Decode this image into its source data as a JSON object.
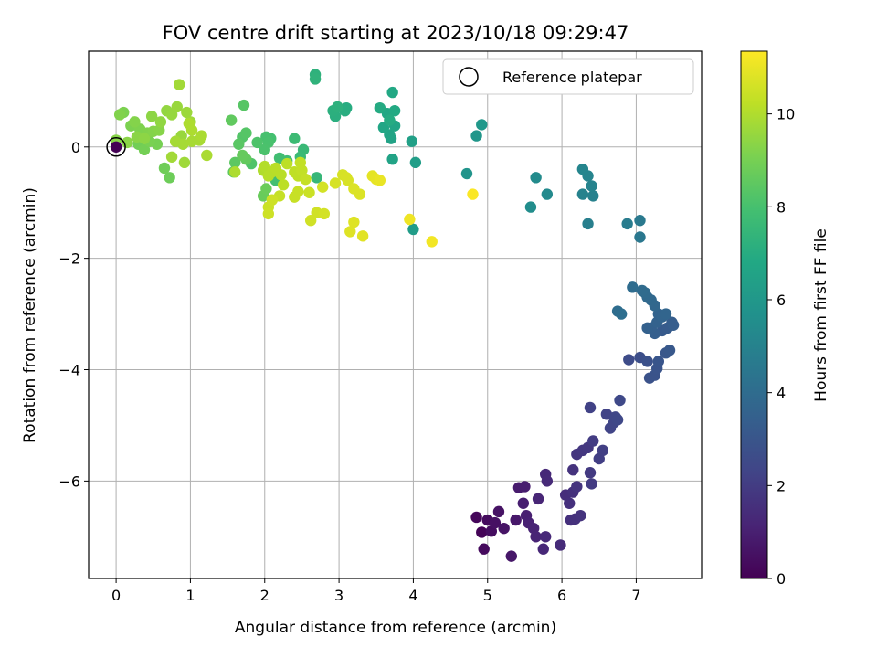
{
  "chart_data": {
    "type": "scatter",
    "title": "FOV centre drift starting at 2023/10/18 09:29:47",
    "xlabel": "Angular distance from reference (arcmin)",
    "ylabel": "Rotation from reference (arcmin)",
    "xlim": [
      -0.37,
      7.88
    ],
    "ylim": [
      -7.75,
      1.72
    ],
    "xticks": [
      0,
      1,
      2,
      3,
      4,
      5,
      6,
      7
    ],
    "yticks": [
      0,
      -2,
      -4,
      -6
    ],
    "grid": true,
    "legend": {
      "position": "top-right",
      "label": "Reference platepar"
    },
    "colorbar": {
      "label": "Hours from first FF file",
      "range": [
        0,
        11.35
      ],
      "ticks": [
        0,
        2,
        4,
        6,
        8,
        10
      ],
      "colormap": "viridis"
    },
    "reference_point": {
      "x": 0,
      "y": 0,
      "color_value": 0
    },
    "series": [
      {
        "points": [
          [
            4.85,
            -6.65,
            0.2
          ],
          [
            4.92,
            -6.92,
            0.1
          ],
          [
            4.95,
            -7.22,
            0.3
          ],
          [
            5.0,
            -6.7,
            0.35
          ],
          [
            5.05,
            -6.9,
            0.4
          ],
          [
            5.1,
            -6.75,
            0.5
          ],
          [
            5.15,
            -6.55,
            0.55
          ],
          [
            5.22,
            -6.85,
            0.6
          ],
          [
            5.32,
            -7.35,
            0.7
          ],
          [
            5.38,
            -6.7,
            0.75
          ],
          [
            5.42,
            -6.12,
            0.85
          ],
          [
            5.5,
            -6.1,
            0.9
          ],
          [
            5.48,
            -6.4,
            0.95
          ],
          [
            5.52,
            -6.62,
            1.0
          ],
          [
            5.55,
            -6.75,
            1.05
          ],
          [
            5.62,
            -6.85,
            1.1
          ],
          [
            5.65,
            -7.0,
            1.15
          ],
          [
            5.68,
            -6.32,
            1.2
          ],
          [
            5.75,
            -7.22,
            1.25
          ],
          [
            5.78,
            -5.88,
            1.3
          ],
          [
            5.8,
            -6.0,
            1.35
          ],
          [
            5.78,
            -7.0,
            1.3
          ],
          [
            5.98,
            -7.15,
            1.4
          ],
          [
            6.05,
            -6.25,
            1.5
          ],
          [
            6.1,
            -6.4,
            1.55
          ],
          [
            6.15,
            -6.2,
            1.6
          ],
          [
            6.15,
            -5.8,
            1.65
          ],
          [
            6.2,
            -6.1,
            1.7
          ],
          [
            6.12,
            -6.7,
            1.55
          ],
          [
            6.18,
            -6.68,
            1.6
          ],
          [
            6.25,
            -6.62,
            1.65
          ],
          [
            6.2,
            -5.52,
            1.75
          ],
          [
            6.28,
            -5.45,
            1.8
          ],
          [
            6.35,
            -5.4,
            1.85
          ],
          [
            6.38,
            -5.85,
            1.9
          ],
          [
            6.4,
            -6.05,
            1.95
          ],
          [
            6.42,
            -5.28,
            2.0
          ],
          [
            6.5,
            -5.6,
            2.05
          ],
          [
            6.55,
            -5.45,
            2.1
          ],
          [
            6.38,
            -4.68,
            2.2
          ],
          [
            6.6,
            -4.8,
            2.25
          ],
          [
            6.65,
            -5.05,
            2.3
          ],
          [
            6.7,
            -4.95,
            2.35
          ],
          [
            6.72,
            -4.85,
            2.4
          ],
          [
            6.75,
            -4.9,
            2.45
          ],
          [
            6.78,
            -4.55,
            2.5
          ],
          [
            6.9,
            -3.82,
            2.6
          ],
          [
            7.05,
            -3.78,
            2.7
          ],
          [
            7.15,
            -3.85,
            2.8
          ],
          [
            7.18,
            -4.15,
            2.85
          ],
          [
            7.25,
            -4.1,
            2.9
          ],
          [
            7.28,
            -3.98,
            2.95
          ],
          [
            7.3,
            -3.85,
            3.0
          ],
          [
            7.4,
            -3.7,
            3.05
          ],
          [
            7.45,
            -3.65,
            3.1
          ],
          [
            7.35,
            -3.3,
            3.2
          ],
          [
            7.42,
            -3.25,
            3.25
          ],
          [
            7.48,
            -3.15,
            3.3
          ],
          [
            7.5,
            -3.2,
            3.35
          ],
          [
            7.25,
            -3.35,
            3.4
          ],
          [
            7.2,
            -3.25,
            3.45
          ],
          [
            7.15,
            -3.25,
            3.5
          ],
          [
            7.28,
            -3.15,
            3.55
          ],
          [
            7.3,
            -3.0,
            3.6
          ],
          [
            7.35,
            -3.05,
            3.65
          ],
          [
            7.4,
            -3.0,
            3.7
          ],
          [
            7.25,
            -2.85,
            3.75
          ],
          [
            7.2,
            -2.75,
            3.8
          ],
          [
            7.15,
            -2.7,
            3.85
          ],
          [
            7.12,
            -2.62,
            3.9
          ],
          [
            7.08,
            -2.58,
            3.95
          ],
          [
            6.95,
            -2.52,
            4.0
          ],
          [
            6.75,
            -2.95,
            4.05
          ],
          [
            6.8,
            -3.0,
            4.1
          ],
          [
            7.05,
            -1.62,
            4.5
          ],
          [
            7.05,
            -1.32,
            4.6
          ],
          [
            6.88,
            -1.38,
            4.7
          ],
          [
            6.35,
            -1.38,
            4.85
          ],
          [
            6.42,
            -0.88,
            4.95
          ],
          [
            6.28,
            -0.85,
            5.0
          ],
          [
            6.4,
            -0.7,
            5.05
          ],
          [
            6.35,
            -0.52,
            5.1
          ],
          [
            6.28,
            -0.4,
            5.15
          ],
          [
            5.8,
            -0.85,
            5.35
          ],
          [
            5.65,
            -0.55,
            5.4
          ],
          [
            5.58,
            -1.08,
            5.5
          ],
          [
            4.72,
            -0.48,
            5.8
          ],
          [
            4.85,
            0.2,
            5.9
          ],
          [
            4.92,
            0.4,
            6.0
          ],
          [
            4.0,
            -1.48,
            6.2
          ],
          [
            4.03,
            -0.28,
            6.3
          ],
          [
            3.98,
            0.1,
            6.4
          ],
          [
            3.7,
            0.15,
            6.5
          ],
          [
            3.72,
            -0.22,
            6.55
          ],
          [
            3.68,
            0.22,
            6.6
          ],
          [
            3.75,
            0.38,
            6.65
          ],
          [
            3.6,
            0.35,
            6.7
          ],
          [
            3.65,
            0.6,
            6.75
          ],
          [
            3.72,
            0.98,
            6.8
          ],
          [
            3.75,
            0.65,
            6.85
          ],
          [
            3.55,
            0.7,
            6.9
          ],
          [
            3.68,
            0.48,
            6.95
          ],
          [
            3.1,
            0.7,
            7.0
          ],
          [
            3.08,
            0.65,
            7.05
          ],
          [
            2.95,
            0.55,
            7.1
          ],
          [
            2.92,
            0.65,
            7.15
          ],
          [
            2.98,
            0.72,
            7.2
          ],
          [
            2.68,
            1.3,
            7.25
          ],
          [
            2.68,
            1.22,
            7.3
          ],
          [
            2.7,
            -0.55,
            7.5
          ],
          [
            2.52,
            -0.05,
            7.6
          ],
          [
            2.48,
            -0.18,
            7.65
          ],
          [
            2.4,
            0.15,
            7.7
          ],
          [
            2.3,
            -0.25,
            7.8
          ],
          [
            2.2,
            -0.2,
            7.85
          ],
          [
            2.15,
            -0.6,
            7.9
          ],
          [
            2.08,
            0.15,
            7.95
          ],
          [
            2.02,
            0.18,
            8.0
          ],
          [
            2.05,
            0.08,
            8.05
          ],
          [
            2.0,
            -0.05,
            8.1
          ],
          [
            1.9,
            0.08,
            8.15
          ],
          [
            1.82,
            -0.3,
            8.2
          ],
          [
            1.7,
            0.18,
            8.25
          ],
          [
            1.75,
            0.25,
            8.3
          ],
          [
            1.72,
            0.75,
            8.35
          ],
          [
            1.65,
            0.05,
            8.4
          ],
          [
            1.6,
            -0.28,
            8.45
          ],
          [
            1.58,
            -0.45,
            8.5
          ],
          [
            1.55,
            0.48,
            8.55
          ],
          [
            1.75,
            -0.22,
            8.6
          ],
          [
            1.7,
            -0.15,
            8.65
          ],
          [
            1.98,
            -0.88,
            8.7
          ],
          [
            2.02,
            -0.75,
            8.75
          ],
          [
            0.72,
            -0.55,
            8.8
          ],
          [
            0.65,
            -0.38,
            8.85
          ],
          [
            0.3,
            0.05,
            8.9
          ],
          [
            0.38,
            -0.05,
            8.95
          ],
          [
            0.55,
            0.05,
            9.0
          ],
          [
            0.45,
            0.1,
            9.05
          ],
          [
            0.2,
            0.38,
            9.1
          ],
          [
            0.1,
            0.62,
            9.1
          ],
          [
            0.32,
            0.32,
            9.15
          ],
          [
            0.42,
            0.25,
            9.2
          ],
          [
            0.5,
            0.28,
            9.25
          ],
          [
            0.58,
            0.3,
            9.3
          ],
          [
            0.15,
            0.08,
            9.35
          ],
          [
            0.28,
            0.18,
            9.35
          ],
          [
            0.38,
            0.15,
            9.4
          ],
          [
            0.48,
            0.55,
            9.4
          ],
          [
            0.6,
            0.45,
            9.45
          ],
          [
            0.68,
            0.65,
            9.5
          ],
          [
            0.75,
            0.58,
            9.55
          ],
          [
            0.82,
            0.72,
            9.6
          ],
          [
            0.88,
            0.2,
            9.6
          ],
          [
            0.95,
            0.62,
            9.65
          ],
          [
            1.0,
            0.45,
            9.7
          ],
          [
            0.92,
            -0.28,
            9.7
          ],
          [
            0.75,
            -0.18,
            9.75
          ],
          [
            0.85,
            1.12,
            9.75
          ],
          [
            0.8,
            0.1,
            9.8
          ],
          [
            0.9,
            0.05,
            9.8
          ],
          [
            1.02,
            0.1,
            9.85
          ],
          [
            1.12,
            0.12,
            9.85
          ],
          [
            1.15,
            0.2,
            9.9
          ],
          [
            1.22,
            -0.15,
            9.9
          ],
          [
            1.02,
            0.3,
            9.95
          ],
          [
            0.98,
            0.42,
            9.95
          ],
          [
            0.05,
            0.58,
            9.2
          ],
          [
            0.0,
            0.12,
            9.3
          ],
          [
            0.25,
            0.45,
            9.25
          ],
          [
            1.6,
            -0.45,
            9.95
          ],
          [
            1.98,
            -0.42,
            10.0
          ],
          [
            2.0,
            -0.35,
            10.05
          ],
          [
            2.05,
            -0.52,
            10.1
          ],
          [
            2.1,
            -0.45,
            10.1
          ],
          [
            2.15,
            -0.38,
            10.15
          ],
          [
            2.22,
            -0.5,
            10.15
          ],
          [
            2.25,
            -0.68,
            10.2
          ],
          [
            2.3,
            -0.3,
            10.2
          ],
          [
            2.4,
            -0.45,
            10.25
          ],
          [
            2.45,
            -0.52,
            10.25
          ],
          [
            2.48,
            -0.28,
            10.3
          ],
          [
            2.5,
            -0.42,
            10.3
          ],
          [
            2.55,
            -0.58,
            10.35
          ],
          [
            2.2,
            -0.88,
            10.35
          ],
          [
            2.4,
            -0.9,
            10.4
          ],
          [
            2.45,
            -0.8,
            10.4
          ],
          [
            2.6,
            -0.82,
            10.45
          ],
          [
            2.05,
            -1.08,
            10.45
          ],
          [
            2.05,
            -1.2,
            10.5
          ],
          [
            2.1,
            -0.95,
            10.5
          ],
          [
            2.62,
            -1.32,
            10.55
          ],
          [
            2.7,
            -1.18,
            10.55
          ],
          [
            2.8,
            -1.2,
            10.6
          ],
          [
            2.78,
            -0.72,
            10.6
          ],
          [
            2.95,
            -0.65,
            10.65
          ],
          [
            3.05,
            -0.5,
            10.65
          ],
          [
            3.1,
            -0.55,
            10.7
          ],
          [
            3.12,
            -0.6,
            10.7
          ],
          [
            3.2,
            -0.75,
            10.75
          ],
          [
            3.28,
            -0.85,
            10.75
          ],
          [
            3.2,
            -1.35,
            10.8
          ],
          [
            3.15,
            -1.52,
            10.8
          ],
          [
            3.32,
            -1.6,
            10.85
          ],
          [
            3.45,
            -0.52,
            10.9
          ],
          [
            3.5,
            -0.58,
            10.95
          ],
          [
            3.55,
            -0.6,
            11.0
          ],
          [
            3.95,
            -1.3,
            11.1
          ],
          [
            4.25,
            -1.7,
            11.15
          ],
          [
            4.8,
            -0.85,
            11.3
          ]
        ]
      }
    ]
  }
}
